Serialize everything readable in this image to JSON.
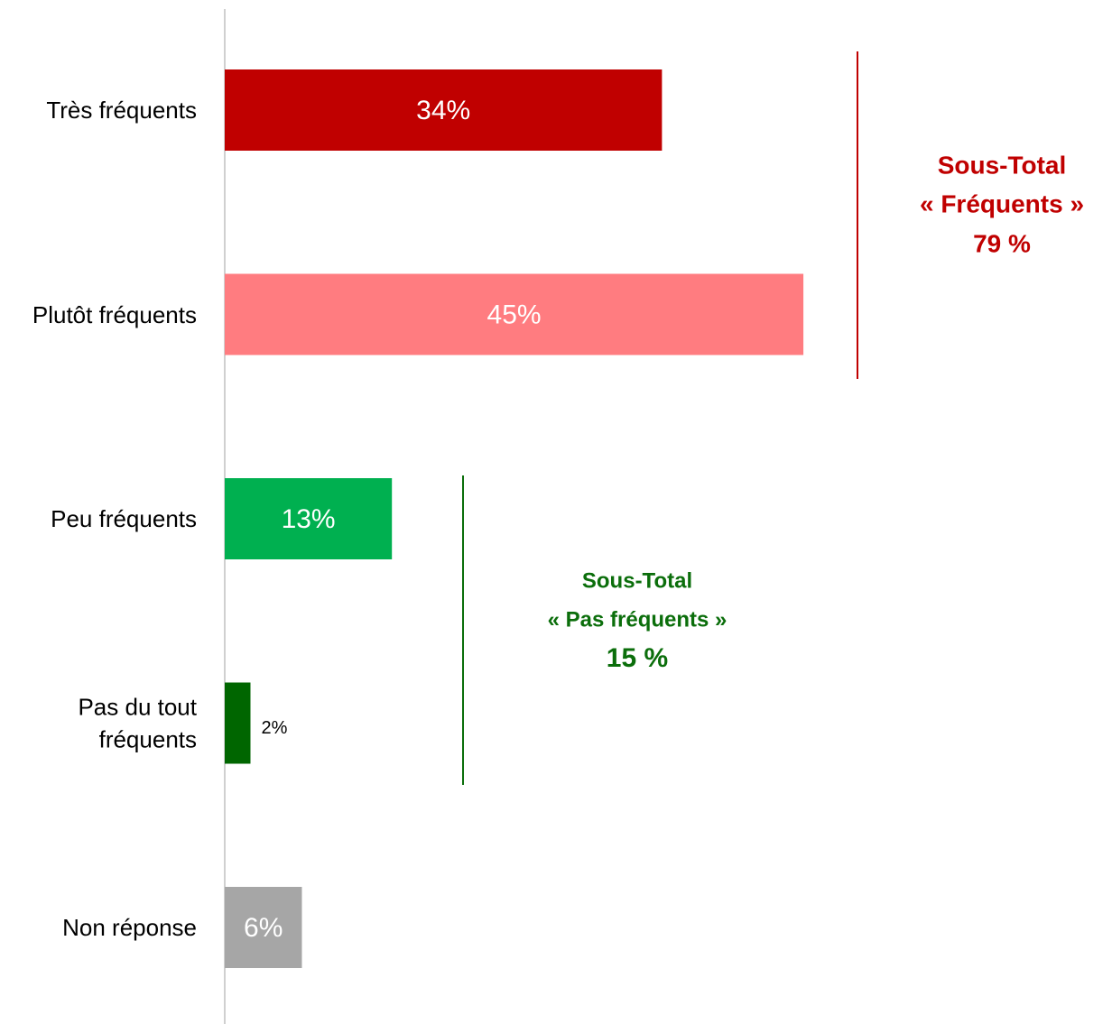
{
  "chart_data": {
    "type": "bar",
    "orientation": "horizontal",
    "categories": [
      "Très fréquents",
      "Plutôt fréquents",
      "Peu fréquents",
      "Pas du tout fréquents",
      "Non réponse"
    ],
    "values": [
      34,
      45,
      13,
      2,
      6
    ],
    "value_labels": [
      "34%",
      "45%",
      "13%",
      "2%",
      "6%"
    ],
    "colors": [
      "#c00000",
      "#ff7c80",
      "#00b050",
      "#006600",
      "#a6a6a6"
    ],
    "xlim": [
      0,
      69
    ],
    "annotations": [
      {
        "lines": [
          "Sous-Total",
          "« Fréquents »",
          "79 %"
        ],
        "color": "#c00000"
      },
      {
        "lines": [
          "Sous-Total",
          "« Pas fréquents »",
          "15 %"
        ],
        "color": "#0b6e0b"
      }
    ]
  }
}
